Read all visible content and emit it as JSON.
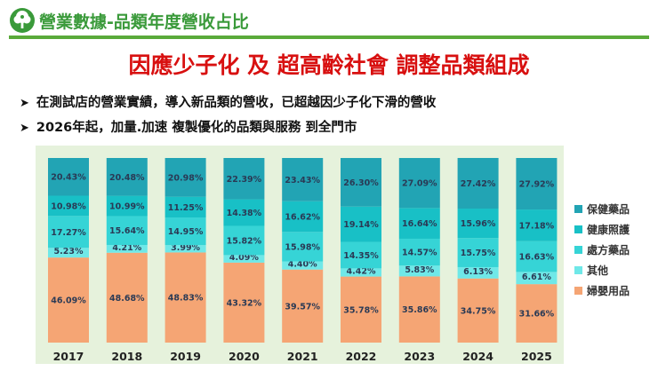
{
  "header": {
    "section_title": "營業數據-品類年度營收占比",
    "logo": "tree-logo-icon"
  },
  "main_title": "因應少子化 及  超高齡社會 調整品類組成",
  "bullets": [
    "在測試店的營業實績，導入新品類的營收，已超越因少子化下滑的營收",
    "2026年起，加量.加速 複製優化的品類與服務 到全門市"
  ],
  "colors": {
    "accent_green": "#3a9a3a",
    "title_red": "#d81010",
    "plot_background": "#e6f2dc"
  },
  "chart_data": {
    "type": "bar",
    "stacked": true,
    "title": "",
    "xlabel": "",
    "ylabel": "",
    "ylim": [
      0,
      100
    ],
    "categories": [
      "2017",
      "2018",
      "2019",
      "2020",
      "2021",
      "2022",
      "2023",
      "2024",
      "2025"
    ],
    "series": [
      {
        "name": "婦嬰用品",
        "color": "#f5a574",
        "values": [
          46.09,
          48.68,
          48.83,
          43.32,
          39.57,
          35.78,
          35.86,
          34.75,
          31.66
        ],
        "labels": [
          "46.09%",
          "48.68%",
          "48.83%",
          "43.32%",
          "39.57%",
          "35.78%",
          "35.86%",
          "34.75%",
          "31.66%"
        ]
      },
      {
        "name": "其他",
        "color": "#6fe8e8",
        "values": [
          5.23,
          4.21,
          3.99,
          4.09,
          4.4,
          4.42,
          5.83,
          6.13,
          6.61
        ],
        "labels": [
          "5.23%",
          "4.21%",
          "3.99%",
          "4.09%",
          "4.40%",
          "4.42%",
          "5.83%",
          "6.13%",
          "6.61%"
        ]
      },
      {
        "name": "處方藥品",
        "color": "#36d4d6",
        "values": [
          17.27,
          15.64,
          14.95,
          15.82,
          15.98,
          14.35,
          14.57,
          15.75,
          16.63
        ],
        "labels": [
          "17.27%",
          "15.64%",
          "14.95%",
          "15.82%",
          "15.98%",
          "14.35%",
          "14.57%",
          "15.75%",
          "16.63%"
        ]
      },
      {
        "name": "健康照護",
        "color": "#18c0c6",
        "values": [
          10.98,
          10.99,
          11.25,
          14.38,
          16.62,
          19.14,
          16.64,
          15.96,
          17.18
        ],
        "labels": [
          "10.98%",
          "10.99%",
          "11.25%",
          "14.38%",
          "16.62%",
          "19.14%",
          "16.64%",
          "15.96%",
          "17.18%"
        ]
      },
      {
        "name": "保健藥品",
        "color": "#22a4b4",
        "values": [
          20.43,
          20.48,
          20.98,
          22.39,
          23.43,
          26.3,
          27.09,
          27.42,
          27.92
        ],
        "labels": [
          "20.43%",
          "20.48%",
          "20.98%",
          "22.39%",
          "23.43%",
          "26.30%",
          "27.09%",
          "27.42%",
          "27.92%"
        ]
      }
    ],
    "legend": {
      "position": "right",
      "order": [
        "保健藥品",
        "健康照護",
        "處方藥品",
        "其他",
        "婦嬰用品"
      ]
    }
  }
}
